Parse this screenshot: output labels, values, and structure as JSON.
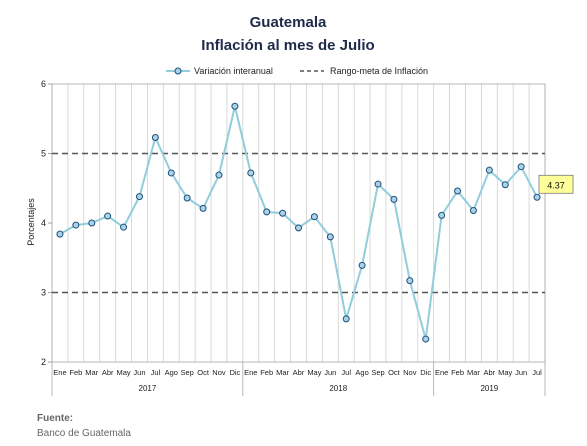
{
  "chart_data": {
    "type": "line",
    "title": "Guatemala",
    "subtitle": "Inflación al mes de Julio",
    "ylabel": "Porcentajes",
    "xlabel": "",
    "ylim": [
      2,
      6
    ],
    "yticks": [
      2,
      3,
      4,
      5,
      6
    ],
    "grid": true,
    "legend_position": "top",
    "categories": [
      "Ene",
      "Feb",
      "Mar",
      "Abr",
      "May",
      "Jun",
      "Jul",
      "Ago",
      "Sep",
      "Oct",
      "Nov",
      "Dic",
      "Ene",
      "Feb",
      "Mar",
      "Abr",
      "May",
      "Jun",
      "Jul",
      "Ago",
      "Sep",
      "Oct",
      "Nov",
      "Dic",
      "Ene",
      "Feb",
      "Mar",
      "Abr",
      "May",
      "Jun",
      "Jul"
    ],
    "year_groups": [
      {
        "label": "2017",
        "start": 0,
        "end": 11
      },
      {
        "label": "2018",
        "start": 12,
        "end": 23
      },
      {
        "label": "2019",
        "start": 24,
        "end": 30
      }
    ],
    "series": [
      {
        "name": "Variación interanual",
        "color": "#92cddc",
        "marker_color": "#1f4e79",
        "values": [
          3.84,
          3.97,
          4.0,
          4.1,
          3.94,
          4.38,
          5.23,
          4.72,
          4.36,
          4.21,
          4.69,
          5.68,
          4.72,
          4.16,
          4.14,
          3.93,
          4.09,
          3.8,
          2.62,
          3.39,
          4.56,
          4.34,
          3.17,
          2.33,
          4.11,
          4.46,
          4.18,
          4.76,
          4.55,
          4.81,
          4.37
        ]
      }
    ],
    "target_band": {
      "name": "Rango-meta de Inflación",
      "color": "#555555",
      "lower": 3,
      "upper": 5
    },
    "callout": {
      "index": 30,
      "label": "4.37",
      "color": "#ffff99"
    }
  },
  "source": {
    "heading": "Fuente:",
    "text": "Banco de Guatemala"
  }
}
